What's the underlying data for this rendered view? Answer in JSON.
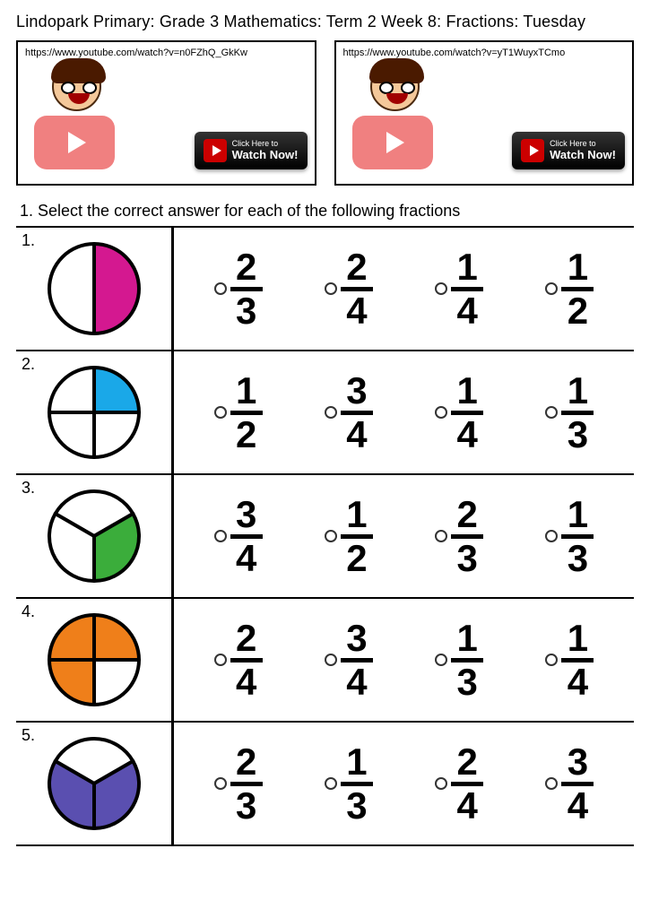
{
  "title": "Lindopark Primary:  Grade 3 Mathematics: Term 2 Week 8: Fractions: Tuesday",
  "videos": [
    {
      "url": "https://www.youtube.com/watch?v=n0FZhQ_GkKw",
      "click_l1": "Click Here to",
      "click_l2": "Watch Now!"
    },
    {
      "url": "https://www.youtube.com/watch?v=yT1WuyxTCmo",
      "click_l1": "Click Here to",
      "click_l2": "Watch Now!"
    }
  ],
  "instruction": "1.   Select the correct answer for each of the following fractions",
  "colors": {
    "q1": "#d41890",
    "q2": "#1aa8e8",
    "q3": "#3bad3b",
    "q4": "#ef7f1a",
    "q5": "#5a4fb0",
    "stroke": "#000000",
    "empty": "#ffffff"
  },
  "questions": [
    {
      "num": "1.",
      "pie": {
        "type": "halves",
        "filled": [
          1
        ],
        "color_key": "q1"
      },
      "options": [
        {
          "n": "2",
          "d": "3"
        },
        {
          "n": "2",
          "d": "4"
        },
        {
          "n": "1",
          "d": "4"
        },
        {
          "n": "1",
          "d": "2"
        }
      ]
    },
    {
      "num": "2.",
      "pie": {
        "type": "quarters",
        "filled": [
          0
        ],
        "color_key": "q2"
      },
      "options": [
        {
          "n": "1",
          "d": "2"
        },
        {
          "n": "3",
          "d": "4"
        },
        {
          "n": "1",
          "d": "4"
        },
        {
          "n": "1",
          "d": "3"
        }
      ]
    },
    {
      "num": "3.",
      "pie": {
        "type": "thirds_y",
        "filled": [
          2
        ],
        "color_key": "q3"
      },
      "options": [
        {
          "n": "3",
          "d": "4"
        },
        {
          "n": "1",
          "d": "2"
        },
        {
          "n": "2",
          "d": "3"
        },
        {
          "n": "1",
          "d": "3"
        }
      ]
    },
    {
      "num": "4.",
      "pie": {
        "type": "quarters",
        "filled": [
          0,
          1,
          2
        ],
        "color_key": "q4"
      },
      "options": [
        {
          "n": "2",
          "d": "4"
        },
        {
          "n": "3",
          "d": "4"
        },
        {
          "n": "1",
          "d": "3"
        },
        {
          "n": "1",
          "d": "4"
        }
      ]
    },
    {
      "num": "5.",
      "pie": {
        "type": "thirds_y",
        "filled": [
          1,
          2
        ],
        "color_key": "q5"
      },
      "options": [
        {
          "n": "2",
          "d": "3"
        },
        {
          "n": "1",
          "d": "3"
        },
        {
          "n": "2",
          "d": "4"
        },
        {
          "n": "3",
          "d": "4"
        }
      ]
    }
  ]
}
